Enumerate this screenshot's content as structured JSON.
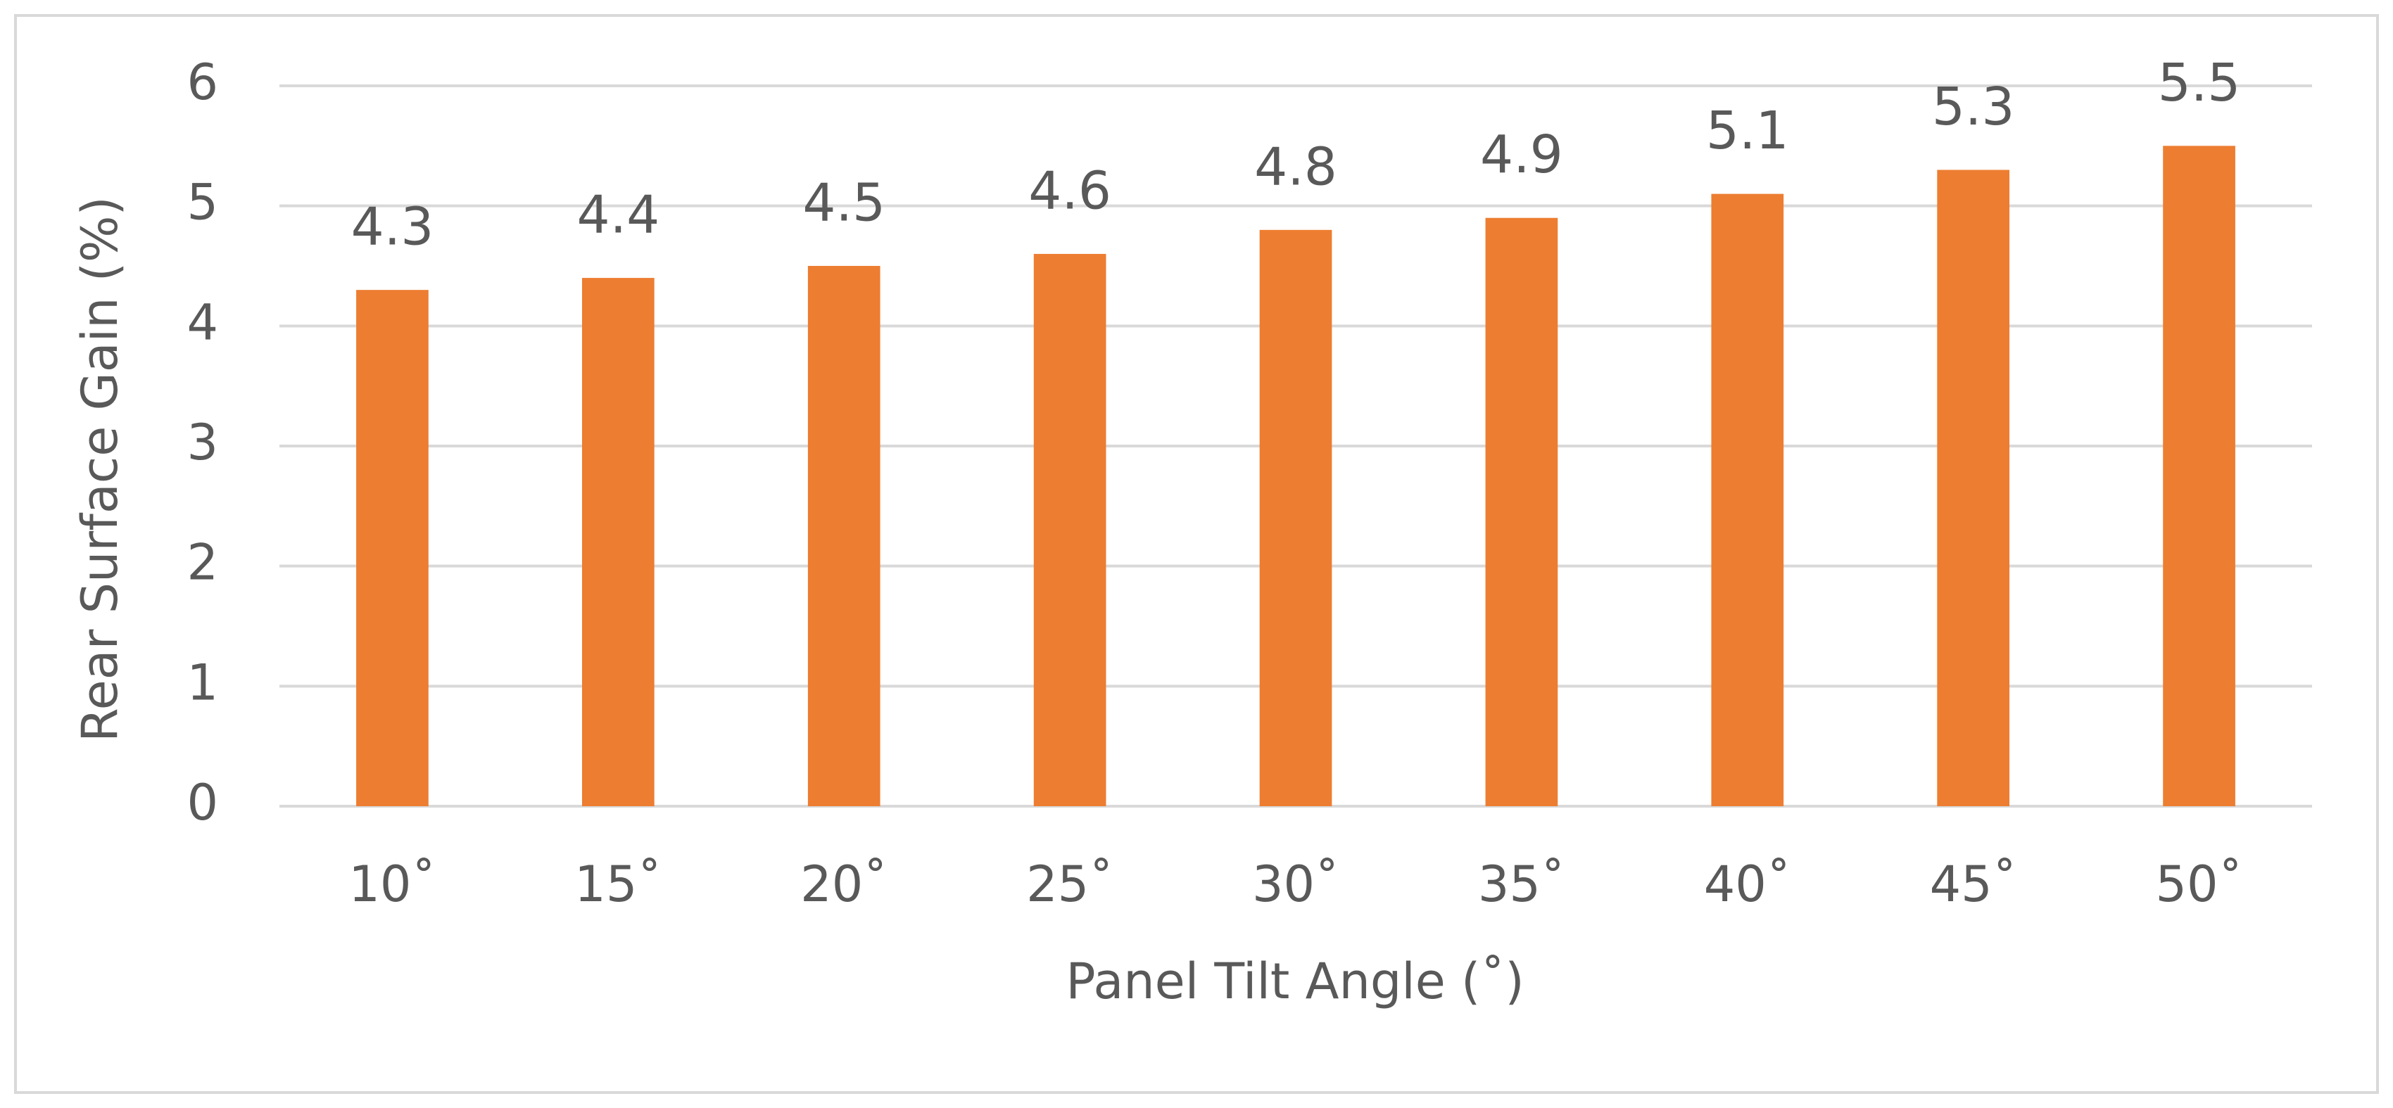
{
  "chart_data": {
    "type": "bar",
    "x_label": "Panel Tilt Angle (˚)",
    "y_label": "Rear Surface Gain (%)",
    "categories": [
      "10˚",
      "15˚",
      "20˚",
      "25˚",
      "30˚",
      "35˚",
      "40˚",
      "45˚",
      "50˚"
    ],
    "values": [
      4.3,
      4.4,
      4.5,
      4.6,
      4.8,
      4.9,
      5.1,
      5.3,
      5.5
    ],
    "color": "#ED7D31",
    "ylim": [
      0,
      6
    ],
    "yticks": [
      0,
      1,
      2,
      3,
      4,
      5,
      6
    ],
    "grid": true
  }
}
